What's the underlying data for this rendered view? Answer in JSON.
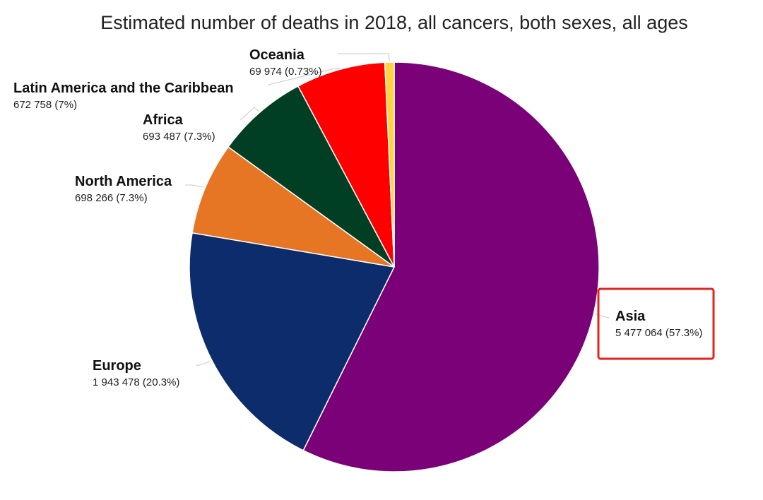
{
  "chart_data": {
    "type": "pie",
    "title": "Estimated number of deaths in 2018, all cancers, both sexes, all ages",
    "slices": [
      {
        "name": "Asia",
        "value": 5477064,
        "label": "5 477 064 (57.3%)",
        "color": "#7a0177",
        "highlighted": true
      },
      {
        "name": "Europe",
        "value": 1943478,
        "label": "1 943 478 (20.3%)",
        "color": "#0c2c6b"
      },
      {
        "name": "North America",
        "value": 698266,
        "label": "698 266 (7.3%)",
        "color": "#e67624"
      },
      {
        "name": "Africa",
        "value": 693487,
        "label": "693 487 (7.3%)",
        "color": "#003f23"
      },
      {
        "name": "Latin America and the Caribbean",
        "value": 672758,
        "label": "672 758 (7%)",
        "color": "#ff0000"
      },
      {
        "name": "Oceania",
        "value": 69974,
        "label": "69 974 (0.73%)",
        "color": "#ffd23f"
      }
    ],
    "highlight_color": "#e3241b"
  }
}
